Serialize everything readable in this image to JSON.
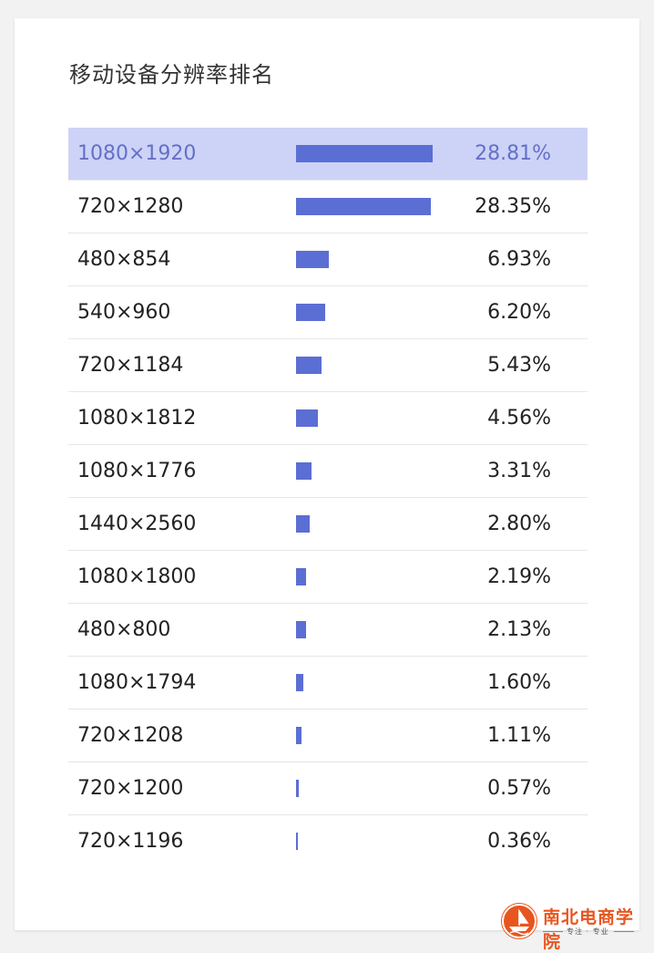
{
  "title": "移动设备分辨率排名",
  "accent_color": "#5b6ed4",
  "highlight_color": "#cdd3f6",
  "rows": [
    {
      "resolution": "1080×1920",
      "percent": "28.81%",
      "share": 28.81
    },
    {
      "resolution": "720×1280",
      "percent": "28.35%",
      "share": 28.35
    },
    {
      "resolution": "480×854",
      "percent": "6.93%",
      "share": 6.93
    },
    {
      "resolution": "540×960",
      "percent": "6.20%",
      "share": 6.2
    },
    {
      "resolution": "720×1184",
      "percent": "5.43%",
      "share": 5.43
    },
    {
      "resolution": "1080×1812",
      "percent": "4.56%",
      "share": 4.56
    },
    {
      "resolution": "1080×1776",
      "percent": "3.31%",
      "share": 3.31
    },
    {
      "resolution": "1440×2560",
      "percent": "2.80%",
      "share": 2.8
    },
    {
      "resolution": "1080×1800",
      "percent": "2.19%",
      "share": 2.19
    },
    {
      "resolution": "480×800",
      "percent": "2.13%",
      "share": 2.13
    },
    {
      "resolution": "1080×1794",
      "percent": "1.60%",
      "share": 1.6
    },
    {
      "resolution": "720×1208",
      "percent": "1.11%",
      "share": 1.11
    },
    {
      "resolution": "720×1200",
      "percent": "0.57%",
      "share": 0.57
    },
    {
      "resolution": "720×1196",
      "percent": "0.36%",
      "share": 0.36
    }
  ],
  "watermark": {
    "name": "南北电商学院",
    "tagline": "专注 · 专业",
    "icon": "boat-seal-icon"
  }
}
